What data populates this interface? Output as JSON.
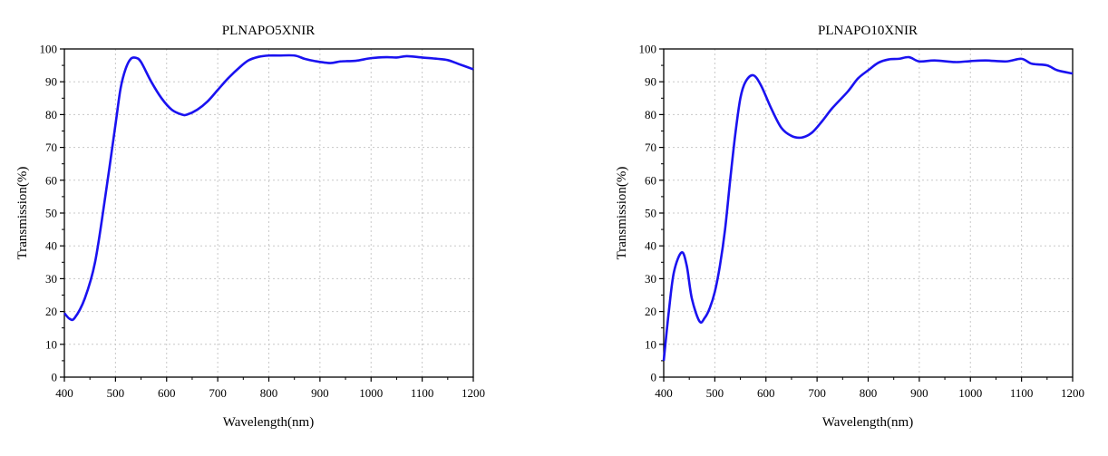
{
  "chart_data": [
    {
      "type": "line",
      "title": "PLNAPO5XNIR",
      "xlabel": "Wavelength(nm)",
      "ylabel": "Transmission(%)",
      "xlim": [
        400,
        1200
      ],
      "ylim": [
        0,
        100
      ],
      "xticks": [
        400,
        500,
        600,
        700,
        800,
        900,
        1000,
        1100,
        1200
      ],
      "yticks": [
        0,
        10,
        20,
        30,
        40,
        50,
        60,
        70,
        80,
        90,
        100
      ],
      "grid": true,
      "color": "#1a12f0",
      "series": [
        {
          "name": "PLNAPO5XNIR",
          "x": [
            400,
            410,
            420,
            440,
            460,
            480,
            500,
            510,
            520,
            530,
            540,
            550,
            570,
            590,
            610,
            630,
            640,
            660,
            680,
            700,
            720,
            740,
            760,
            780,
            800,
            820,
            850,
            870,
            890,
            920,
            940,
            970,
            1000,
            1030,
            1050,
            1070,
            1100,
            1130,
            1150,
            1170,
            1200
          ],
          "y": [
            19.5,
            17.8,
            18,
            24,
            35,
            55,
            77,
            88,
            94,
            97,
            97.3,
            96,
            90,
            85,
            81.5,
            80,
            80,
            81.5,
            84,
            87.5,
            91,
            94,
            96.5,
            97.6,
            98,
            98,
            98,
            97,
            96.3,
            95.7,
            96.2,
            96.4,
            97.2,
            97.5,
            97.4,
            97.8,
            97.4,
            97,
            96.6,
            95.5,
            93.8
          ]
        }
      ]
    },
    {
      "type": "line",
      "title": "PLNAPO10XNIR",
      "xlabel": "Wavelength(nm)",
      "ylabel": "Transmission(%)",
      "xlim": [
        400,
        1200
      ],
      "ylim": [
        0,
        100
      ],
      "xticks": [
        400,
        500,
        600,
        700,
        800,
        900,
        1000,
        1100,
        1200
      ],
      "yticks": [
        0,
        10,
        20,
        30,
        40,
        50,
        60,
        70,
        80,
        90,
        100
      ],
      "grid": true,
      "color": "#1a12f0",
      "series": [
        {
          "name": "PLNAPO10XNIR",
          "x": [
            400,
            410,
            420,
            435,
            445,
            455,
            470,
            480,
            490,
            500,
            510,
            520,
            530,
            540,
            550,
            560,
            575,
            590,
            610,
            630,
            650,
            670,
            690,
            710,
            730,
            760,
            780,
            800,
            820,
            840,
            860,
            880,
            900,
            930,
            970,
            1000,
            1030,
            1070,
            1100,
            1120,
            1150,
            1170,
            1200
          ],
          "y": [
            5,
            20,
            32,
            38,
            34,
            24,
            17,
            18,
            21,
            26,
            34,
            45,
            60,
            74,
            85,
            90,
            92,
            89,
            82,
            76,
            73.5,
            73,
            74.5,
            78,
            82,
            87,
            91,
            93.5,
            95.8,
            96.8,
            97,
            97.5,
            96.2,
            96.5,
            96,
            96.3,
            96.5,
            96.2,
            97,
            95.5,
            95,
            93.5,
            92.5
          ]
        }
      ]
    }
  ]
}
